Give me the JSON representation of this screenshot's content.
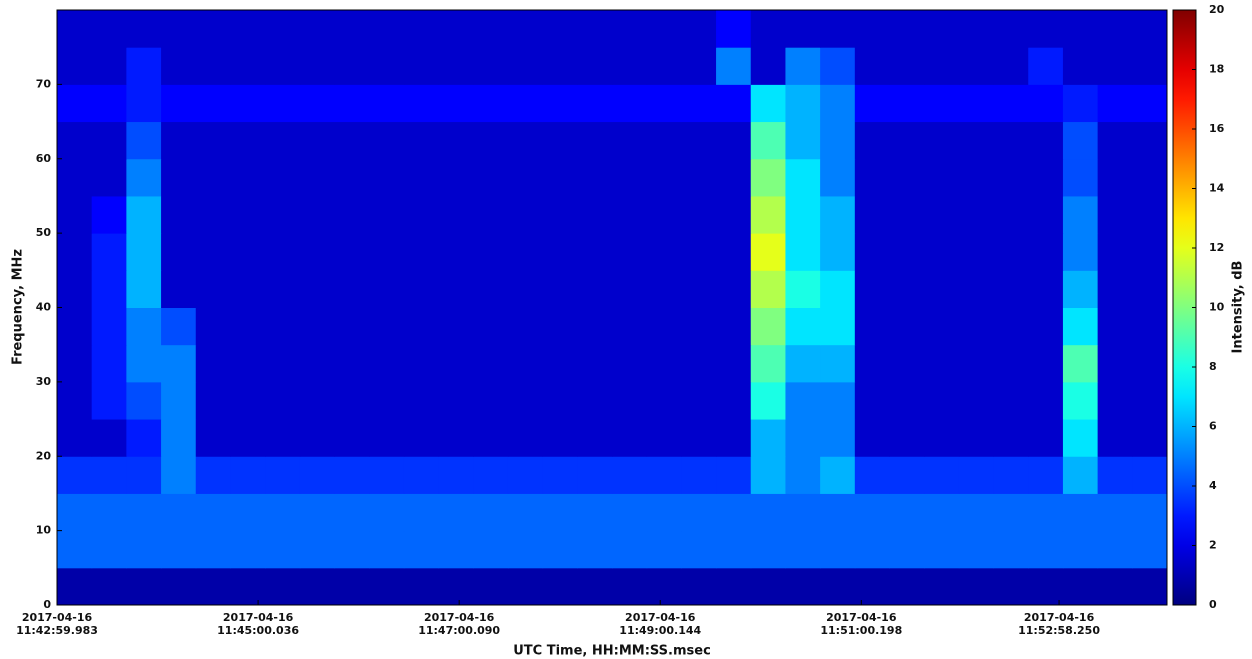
{
  "chart_data": {
    "type": "spectrogram",
    "x_label": "UTC Time, HH:MM:SS.msec",
    "y_label": "Frequency, MHz",
    "colorbar_label": "Intensity, dB",
    "xlim": [
      "2017-04-16T11:42:59.983",
      "2017-04-16T11:54:02.700"
    ],
    "xticks": [
      {
        "value": "2017-04-16T11:42:59.983",
        "label": [
          "2017-04-16",
          "11:42:59.983"
        ]
      },
      {
        "value": "2017-04-16T11:45:00.036",
        "label": [
          "2017-04-16",
          "11:45:00.036"
        ]
      },
      {
        "value": "2017-04-16T11:47:00.090",
        "label": [
          "2017-04-16",
          "11:47:00.090"
        ]
      },
      {
        "value": "2017-04-16T11:49:00.144",
        "label": [
          "2017-04-16",
          "11:49:00.144"
        ]
      },
      {
        "value": "2017-04-16T11:51:00.198",
        "label": [
          "2017-04-16",
          "11:51:00.198"
        ]
      },
      {
        "value": "2017-04-16T11:52:58.250",
        "label": [
          "2017-04-16",
          "11:52:58.250"
        ]
      }
    ],
    "ylim": [
      0,
      80
    ],
    "yticks": [
      0,
      10,
      20,
      30,
      40,
      50,
      60,
      70
    ],
    "clim": [
      0,
      20
    ],
    "cticks": [
      0,
      2,
      4,
      6,
      8,
      10,
      12,
      14,
      16,
      18,
      20
    ],
    "colormap": "jet",
    "z": [
      [
        0.8,
        0.8,
        0.8,
        0.8,
        0.8,
        0.8,
        0.8,
        0.8,
        0.8,
        0.8,
        0.8,
        0.8,
        0.8,
        0.8,
        0.8,
        0.8,
        0.8,
        0.8,
        0.8,
        0.8,
        0.8,
        0.8,
        0.8,
        0.8,
        0.8,
        0.8,
        0.8,
        0.8,
        0.8,
        0.8,
        0.8,
        0.8
      ],
      [
        4.5,
        4.5,
        4.5,
        4.5,
        4.5,
        4.5,
        4.5,
        4.5,
        4.5,
        4.5,
        4.5,
        4.5,
        4.5,
        4.5,
        4.5,
        4.5,
        4.5,
        4.5,
        4.5,
        4.5,
        4.5,
        4.5,
        4.5,
        4.5,
        4.5,
        4.5,
        4.5,
        4.5,
        4.5,
        4.5,
        4.5,
        4.5
      ],
      [
        4.5,
        4.5,
        4.5,
        4.5,
        4.5,
        4.5,
        4.5,
        4.5,
        4.5,
        4.5,
        4.5,
        4.5,
        4.5,
        4.5,
        4.5,
        4.5,
        4.5,
        4.5,
        4.5,
        4.5,
        4.5,
        4.5,
        4.5,
        4.5,
        4.5,
        4.5,
        4.5,
        4.5,
        4.5,
        4.5,
        4.5,
        4.5
      ],
      [
        3.5,
        3.5,
        3.5,
        5,
        3.5,
        3.5,
        3.5,
        3.5,
        3.5,
        3.5,
        3.5,
        3.5,
        3.5,
        3.5,
        3.5,
        3.5,
        3.5,
        3.5,
        3.5,
        3.5,
        6,
        5,
        6,
        3.5,
        3.5,
        3.5,
        3.5,
        3.5,
        3.5,
        6,
        3.5,
        3.5
      ],
      [
        1.5,
        1.5,
        3,
        5,
        1.5,
        1.5,
        1.5,
        1.5,
        1.5,
        1.5,
        1.5,
        1.5,
        1.5,
        1.5,
        1.5,
        1.5,
        1.5,
        1.5,
        1.5,
        1.5,
        6,
        5,
        5,
        1.5,
        1.5,
        1.5,
        1.5,
        1.5,
        1.5,
        7,
        1.5,
        1.5
      ],
      [
        1.5,
        3,
        4,
        5,
        1.5,
        1.5,
        1.5,
        1.5,
        1.5,
        1.5,
        1.5,
        1.5,
        1.5,
        1.5,
        1.5,
        1.5,
        1.5,
        1.5,
        1.5,
        1.5,
        8,
        5,
        5,
        1.5,
        1.5,
        1.5,
        1.5,
        1.5,
        1.5,
        8,
        1.5,
        1.5
      ],
      [
        1.5,
        3,
        5,
        5,
        1.5,
        1.5,
        1.5,
        1.5,
        1.5,
        1.5,
        1.5,
        1.5,
        1.5,
        1.5,
        1.5,
        1.5,
        1.5,
        1.5,
        1.5,
        1.5,
        9,
        6,
        6,
        1.5,
        1.5,
        1.5,
        1.5,
        1.5,
        1.5,
        9,
        1.5,
        1.5
      ],
      [
        1.5,
        3,
        5,
        4,
        1.5,
        1.5,
        1.5,
        1.5,
        1.5,
        1.5,
        1.5,
        1.5,
        1.5,
        1.5,
        1.5,
        1.5,
        1.5,
        1.5,
        1.5,
        1.5,
        10,
        7,
        7,
        1.5,
        1.5,
        1.5,
        1.5,
        1.5,
        1.5,
        7,
        1.5,
        1.5
      ],
      [
        1.5,
        3,
        6,
        1.5,
        1.5,
        1.5,
        1.5,
        1.5,
        1.5,
        1.5,
        1.5,
        1.5,
        1.5,
        1.5,
        1.5,
        1.5,
        1.5,
        1.5,
        1.5,
        1.5,
        11,
        8,
        7,
        1.5,
        1.5,
        1.5,
        1.5,
        1.5,
        1.5,
        6,
        1.5,
        1.5
      ],
      [
        1.5,
        3,
        6,
        1.5,
        1.5,
        1.5,
        1.5,
        1.5,
        1.5,
        1.5,
        1.5,
        1.5,
        1.5,
        1.5,
        1.5,
        1.5,
        1.5,
        1.5,
        1.5,
        1.5,
        12,
        7,
        6,
        1.5,
        1.5,
        1.5,
        1.5,
        1.5,
        1.5,
        5,
        1.5,
        1.5
      ],
      [
        1.5,
        2.5,
        6,
        1.5,
        1.5,
        1.5,
        1.5,
        1.5,
        1.5,
        1.5,
        1.5,
        1.5,
        1.5,
        1.5,
        1.5,
        1.5,
        1.5,
        1.5,
        1.5,
        1.5,
        11,
        7,
        6,
        1.5,
        1.5,
        1.5,
        1.5,
        1.5,
        1.5,
        5,
        1.5,
        1.5
      ],
      [
        1.5,
        1.5,
        5,
        1.5,
        1.5,
        1.5,
        1.5,
        1.5,
        1.5,
        1.5,
        1.5,
        1.5,
        1.5,
        1.5,
        1.5,
        1.5,
        1.5,
        1.5,
        1.5,
        1.5,
        10,
        7,
        5,
        1.5,
        1.5,
        1.5,
        1.5,
        1.5,
        1.5,
        4,
        1.5,
        1.5
      ],
      [
        1.5,
        1.5,
        4,
        1.5,
        1.5,
        1.5,
        1.5,
        1.5,
        1.5,
        1.5,
        1.5,
        1.5,
        1.5,
        1.5,
        1.5,
        1.5,
        1.5,
        1.5,
        1.5,
        1.5,
        9,
        6,
        5,
        1.5,
        1.5,
        1.5,
        1.5,
        1.5,
        1.5,
        4,
        1.5,
        1.5
      ],
      [
        2.5,
        2.5,
        3,
        2.5,
        2.5,
        2.5,
        2.5,
        2.5,
        2.5,
        2.5,
        2.5,
        2.5,
        2.5,
        2.5,
        2.5,
        2.5,
        2.5,
        2.5,
        2.5,
        2.5,
        7,
        6,
        5,
        2.5,
        2.5,
        2.5,
        2.5,
        2.5,
        2.5,
        3,
        2.5,
        2.5
      ],
      [
        1.5,
        1.5,
        3,
        1.5,
        1.5,
        1.5,
        1.5,
        1.5,
        1.5,
        1.5,
        1.5,
        1.5,
        1.5,
        1.5,
        1.5,
        1.5,
        1.5,
        1.5,
        1.5,
        5,
        1.5,
        5,
        4,
        1.5,
        1.5,
        1.5,
        1.5,
        1.5,
        3,
        1.5,
        1.5,
        1.5
      ],
      [
        1.5,
        1.5,
        1.5,
        1.5,
        1.5,
        1.5,
        1.5,
        1.5,
        1.5,
        1.5,
        1.5,
        1.5,
        1.5,
        1.5,
        1.5,
        1.5,
        1.5,
        1.5,
        1.5,
        2.5,
        1.5,
        1.5,
        1.5,
        1.5,
        1.5,
        1.5,
        1.5,
        1.5,
        1.5,
        1.5,
        1.5,
        1.5
      ]
    ]
  }
}
